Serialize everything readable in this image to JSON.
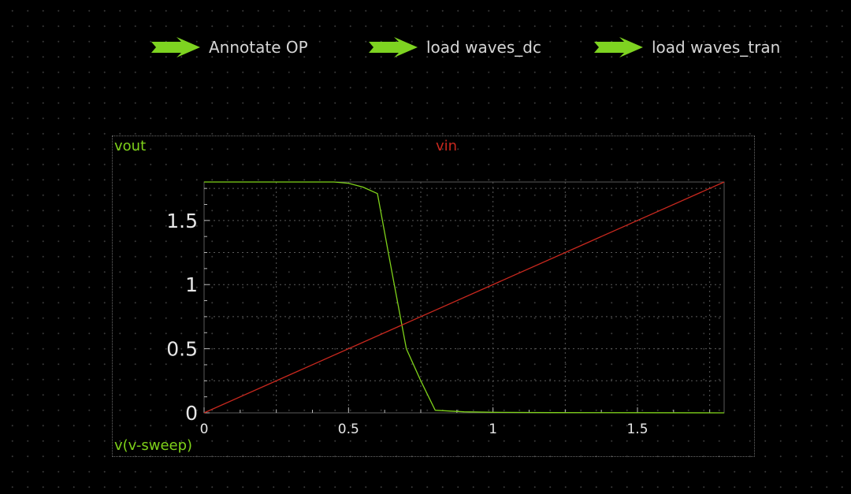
{
  "toolbar": {
    "annotate_op": "Annotate OP",
    "load_waves_dc": "load waves_dc",
    "load_waves_tran": "load waves_tran"
  },
  "plot": {
    "signal_vout": "vout",
    "signal_vin": "vin",
    "sweep_label": "v(v-sweep)"
  },
  "colors": {
    "vout": "#7fd21a",
    "vin": "#c8281e",
    "arrow": "#7ed321",
    "grid": "#5a5a5a",
    "tick": "#e6e6e6"
  },
  "chart_data": {
    "type": "line",
    "xlabel": "v(v-sweep)",
    "ylabel": "",
    "xlim": [
      0,
      1.8
    ],
    "ylim": [
      0,
      1.8
    ],
    "x_ticks": [
      0,
      0.5,
      1,
      1.5
    ],
    "x_tick_labels": [
      "0",
      "0.5",
      "1",
      "1.5"
    ],
    "y_ticks": [
      0,
      0.5,
      1,
      1.5
    ],
    "y_tick_labels": [
      "0",
      "0.5",
      "1",
      "1.5"
    ],
    "grid": true,
    "series": [
      {
        "name": "vout",
        "x": [
          0,
          0.3,
          0.45,
          0.5,
          0.55,
          0.6,
          0.65,
          0.7,
          0.75,
          0.8,
          0.9,
          1.0,
          1.2,
          1.5,
          1.8
        ],
        "y": [
          1.8,
          1.8,
          1.8,
          1.79,
          1.76,
          1.71,
          1.1,
          0.5,
          0.25,
          0.02,
          0.008,
          0.004,
          0.002,
          0.001,
          0.0
        ]
      },
      {
        "name": "vin",
        "x": [
          0,
          1.8
        ],
        "y": [
          0,
          1.8
        ]
      }
    ]
  }
}
